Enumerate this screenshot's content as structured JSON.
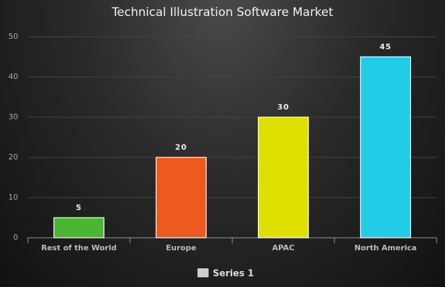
{
  "chart_data": {
    "type": "bar",
    "title": "Technical Illustration Software Market",
    "categories": [
      "Rest of the World",
      "Europe",
      "APAC",
      "North America"
    ],
    "series": [
      {
        "name": "Series 1",
        "color": "#cccccc",
        "colors": [
          "#4db534",
          "#ec5a1f",
          "#e0e000",
          "#22cce6"
        ],
        "values": [
          5,
          20,
          30,
          45
        ]
      }
    ],
    "ylim": [
      0,
      50
    ],
    "yticks": [
      0,
      10,
      20,
      30,
      40,
      50
    ],
    "grid": true,
    "legend": "bottom"
  }
}
